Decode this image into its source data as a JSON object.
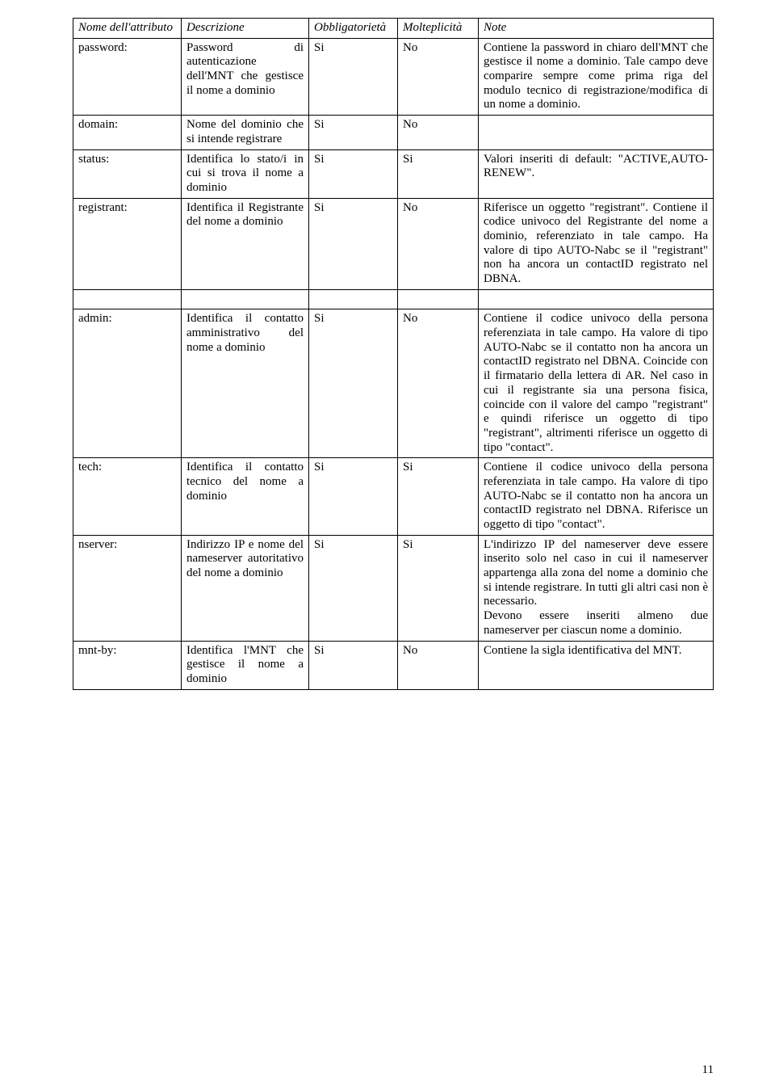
{
  "table": {
    "header": {
      "attr": "Nome dell'attributo",
      "desc": "Descrizione",
      "obbl": "Obbligatorietà",
      "molt": "Molteplicità",
      "note": "Note"
    },
    "rows": [
      {
        "attr": "password:",
        "desc": "Password di autenticazione dell'MNT che gestisce il nome a dominio",
        "obbl": "Si",
        "molt": "No",
        "note": "Contiene la password in chiaro dell'MNT che gestisce il nome a dominio. Tale campo deve comparire sempre come prima riga del modulo tecnico di registrazione/modifica di un nome a dominio."
      },
      {
        "attr": "domain:",
        "desc": "Nome del dominio che si intende registrare",
        "obbl": "Si",
        "molt": "No",
        "note": ""
      },
      {
        "attr": "status:",
        "desc": "Identifica lo stato/i in cui si trova il nome a dominio",
        "obbl": "Si",
        "molt": "Si",
        "note": "Valori inseriti di default: \"ACTIVE,AUTO-RENEW\"."
      },
      {
        "attr": "registrant:",
        "desc": "Identifica il Registrante del nome a dominio",
        "obbl": "Si",
        "molt": "No",
        "note": "Riferisce un oggetto \"registrant\". Contiene il codice univoco del Registrante del nome a dominio, referenziato in tale campo. Ha valore di tipo AUTO-Nabc se il \"registrant\" non ha ancora un contactID registrato nel DBNA."
      },
      {
        "attr": "admin:",
        "desc": "Identifica il contatto amministrativo del nome a dominio",
        "obbl": "Si",
        "molt": "No",
        "note": "Contiene il codice univoco della persona referenziata in tale campo. Ha valore di tipo AUTO-Nabc se il contatto non ha ancora un contactID registrato nel DBNA. Coincide con il firmatario della lettera di AR. Nel caso in cui il registrante sia una persona fisica, coincide con il valore del campo \"registrant\" e quindi riferisce un oggetto di tipo \"registrant\", altrimenti riferisce un oggetto di tipo \"contact\"."
      },
      {
        "attr": "tech:",
        "desc": "Identifica il contatto tecnico del nome a dominio",
        "obbl": "Si",
        "molt": "Si",
        "note": "Contiene il codice univoco della persona referenziata in tale campo. Ha valore di tipo AUTO-Nabc se il contatto non ha ancora un contactID registrato nel DBNA. Riferisce un oggetto di tipo \"contact\"."
      },
      {
        "attr": "nserver:",
        "desc": "Indirizzo IP e nome del nameserver autoritativo del nome a dominio",
        "obbl": "Si",
        "molt": "Si",
        "note": "L'indirizzo IP del nameserver deve essere inserito solo nel caso in cui il nameserver appartenga alla zona del nome a dominio che si intende registrare. In tutti gli altri casi non è necessario.\nDevono essere inseriti almeno due nameserver per ciascun nome a dominio."
      },
      {
        "attr": "mnt-by:",
        "desc": "Identifica l'MNT che gestisce il nome a dominio",
        "obbl": "Si",
        "molt": "No",
        "note": "Contiene la sigla identificativa del MNT."
      }
    ],
    "gap_after_index": 3
  },
  "page_number": "11"
}
